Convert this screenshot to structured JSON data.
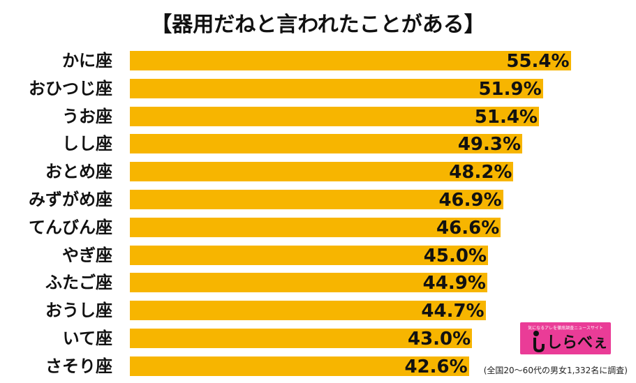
{
  "chart_data": {
    "type": "bar",
    "orientation": "horizontal",
    "title": "【器用だねと言われたことがある】",
    "categories": [
      "かに座",
      "おひつじ座",
      "うお座",
      "しし座",
      "おとめ座",
      "みずがめ座",
      "てんびん座",
      "やぎ座",
      "ふたご座",
      "おうし座",
      "いて座",
      "さそり座"
    ],
    "values": [
      55.4,
      51.9,
      51.4,
      49.3,
      48.2,
      46.9,
      46.6,
      45.0,
      44.9,
      44.7,
      43.0,
      42.6
    ],
    "value_labels": [
      "55.4%",
      "51.9%",
      "51.4%",
      "49.3%",
      "48.2%",
      "46.9%",
      "46.6%",
      "45.0%",
      "44.9%",
      "44.7%",
      "43.0%",
      "42.6%"
    ],
    "xlim": [
      0,
      60
    ],
    "grid": false,
    "bar_color": "#f7b500"
  },
  "logo": {
    "tagline": "気になるアレを徹底調査ニュースサイト",
    "text": "しらべぇ",
    "color": "#ea3c97"
  },
  "footnote": "(全国20〜60代の男女1,332名に調査)"
}
